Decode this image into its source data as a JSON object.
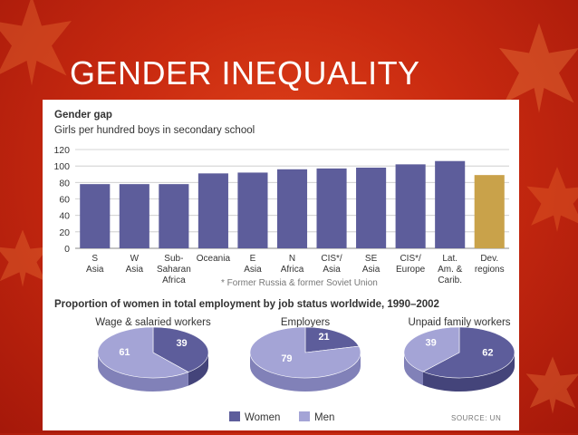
{
  "slide": {
    "title": "GENDER INEQUALITY"
  },
  "colors": {
    "background": "#c9300f",
    "women": "#5d5d9b",
    "men": "#a4a4d6",
    "developed": "#c9a24a"
  },
  "chart_data": [
    {
      "type": "bar",
      "title": "Gender gap",
      "subtitle": "Girls per hundred boys in secondary school",
      "categories": [
        [
          "S",
          "Asia"
        ],
        [
          "W",
          "Asia"
        ],
        [
          "Sub-",
          "Saharan",
          "Africa"
        ],
        [
          "Oceania"
        ],
        [
          "E",
          "Asia"
        ],
        [
          "N",
          "Africa"
        ],
        [
          "CIS*/",
          "Asia"
        ],
        [
          "SE",
          "Asia"
        ],
        [
          "CIS*/",
          "Europe"
        ],
        [
          "Lat.",
          "Am. &",
          "Carib."
        ],
        [
          "Dev.",
          "regions"
        ]
      ],
      "values": [
        78,
        78,
        78,
        91,
        92,
        96,
        97,
        98,
        102,
        106,
        89
      ],
      "highlight_index": 10,
      "ylim": [
        0,
        120
      ],
      "yticks": [
        "0",
        "20",
        "40",
        "60",
        "80",
        "100",
        "120"
      ],
      "grid": true,
      "footnote": "* Former Russia & former Soviet Union"
    },
    {
      "type": "pie",
      "title": "Proportion of women in total employment by job status worldwide, 1990–2002",
      "charts": [
        {
          "label": "Wage & salaried workers",
          "women": 39,
          "men": 61,
          "women_label": "39",
          "men_label": "61"
        },
        {
          "label": "Employers",
          "women": 21,
          "men": 79,
          "women_label": "21",
          "men_label": "79"
        },
        {
          "label": "Unpaid family workers",
          "women": 62,
          "men": 39,
          "women_label": "62",
          "men_label": "39"
        }
      ],
      "legend": [
        {
          "label": "Women",
          "color": "#5d5d9b"
        },
        {
          "label": "Men",
          "color": "#a4a4d6"
        }
      ],
      "legend_position": "bottom",
      "source": "SOURCE: UN"
    }
  ]
}
